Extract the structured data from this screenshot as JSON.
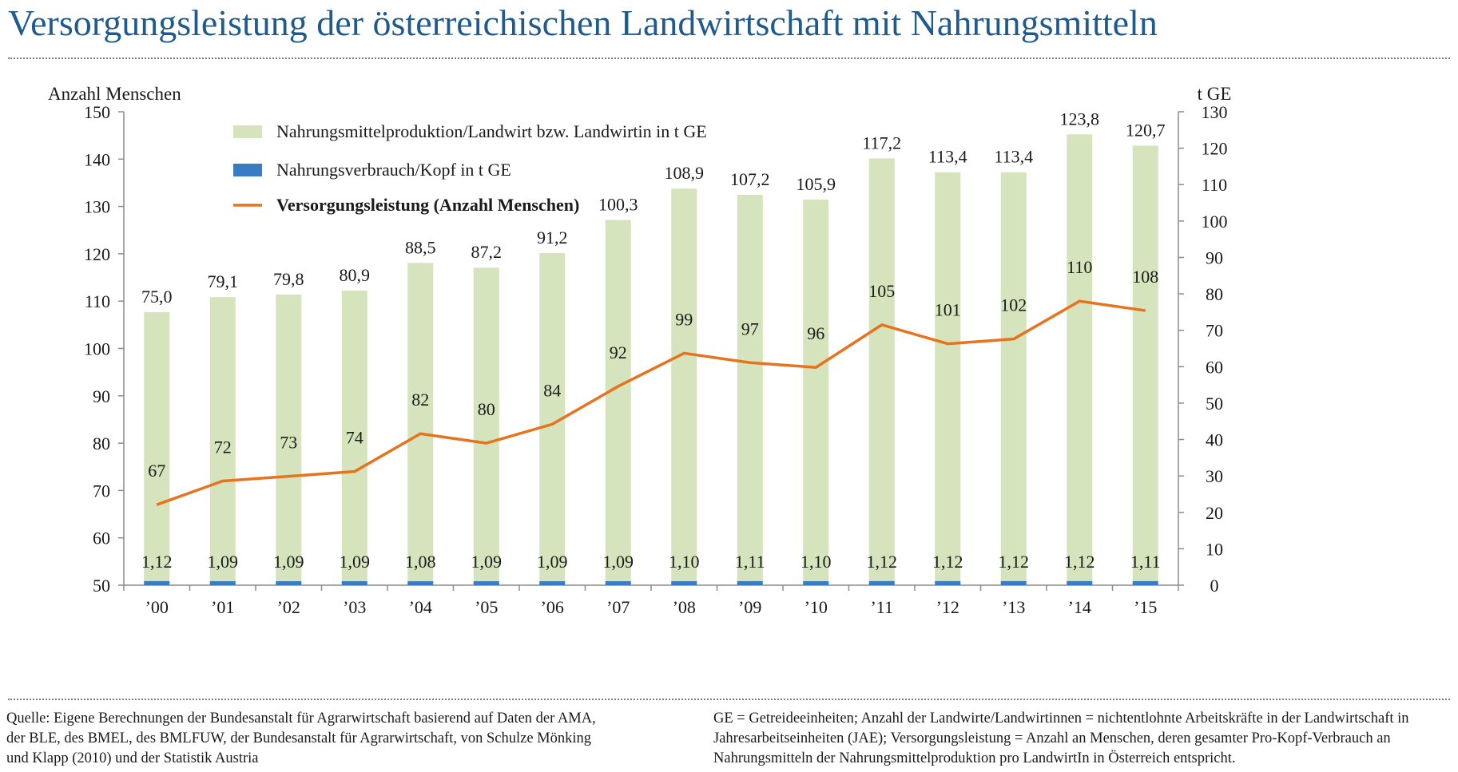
{
  "title": "Versorgungsleistung der österreichischen Landwirtschaft mit Nahrungsmitteln",
  "footer": {
    "source": "Quelle: Eigene Berechnungen der Bundesanstalt für Agrarwirtschaft basierend auf Daten der AMA, der BLE, des BMEL, des BMLFUW, der Bundesanstalt für Agrarwirtschaft, von Schulze Mönking und Klapp (2010) und der Statistik Austria",
    "note": "GE = Getreideeinheiten; Anzahl der Landwirte/Landwirtinnen = nichtentlohnte Arbeitskräfte in der Landwirtschaft in Jahresarbeitseinheiten (JAE); Versorgungsleistung = Anzahl an Menschen, deren gesamter Pro-Kopf-Verbrauch an Nahrungsmitteln der Nahrungsmittelproduktion pro LandwirtIn in Österreich entspricht."
  },
  "colors": {
    "title": "#1f5a8e",
    "production_bar": "#d5e4bc",
    "consumption_bar": "#3a7cc3",
    "line": "#e8731f",
    "axis": "#8c8c8c"
  },
  "chart_data": {
    "type": "bar+line",
    "categories": [
      "’00",
      "’01",
      "’02",
      "’03",
      "’04",
      "’05",
      "’06",
      "’07",
      "’08",
      "’09",
      "’10",
      "’11",
      "’12",
      "’13",
      "’14",
      "’15"
    ],
    "series": [
      {
        "name": "Nahrungsmittelproduktion/Landwirt bzw. Landwirtin in t GE",
        "type": "bar",
        "axis": "right",
        "values": [
          75.0,
          79.1,
          79.8,
          80.9,
          88.5,
          87.2,
          91.2,
          100.3,
          108.9,
          107.2,
          105.9,
          117.2,
          113.4,
          113.4,
          123.8,
          120.7
        ],
        "labels": [
          "75,0",
          "79,1",
          "79,8",
          "80,9",
          "88,5",
          "87,2",
          "91,2",
          "100,3",
          "108,9",
          "107,2",
          "105,9",
          "117,2",
          "113,4",
          "113,4",
          "123,8",
          "120,7"
        ]
      },
      {
        "name": "Nahrungsverbrauch/Kopf in t GE",
        "type": "bar",
        "axis": "right",
        "values": [
          1.12,
          1.09,
          1.09,
          1.09,
          1.08,
          1.09,
          1.09,
          1.09,
          1.1,
          1.11,
          1.1,
          1.12,
          1.12,
          1.12,
          1.12,
          1.11
        ],
        "labels": [
          "1,12",
          "1,09",
          "1,09",
          "1,09",
          "1,08",
          "1,09",
          "1,09",
          "1,09",
          "1,10",
          "1,11",
          "1,10",
          "1,12",
          "1,12",
          "1,12",
          "1,12",
          "1,11"
        ]
      },
      {
        "name": "Versorgungsleistung (Anzahl Menschen)",
        "type": "line",
        "axis": "left",
        "values": [
          67,
          72,
          73,
          74,
          82,
          80,
          84,
          92,
          99,
          97,
          96,
          105,
          101,
          102,
          110,
          108
        ],
        "labels": [
          "67",
          "72",
          "73",
          "74",
          "82",
          "80",
          "84",
          "92",
          "99",
          "97",
          "96",
          "105",
          "101",
          "102",
          "110",
          "108"
        ]
      }
    ],
    "left_axis": {
      "label": "Anzahl Menschen",
      "range": [
        50,
        150
      ],
      "ticks": [
        50,
        60,
        70,
        80,
        90,
        100,
        110,
        120,
        130,
        140,
        150
      ],
      "tick_labels": [
        "50",
        "60",
        "70",
        "80",
        "90",
        "100",
        "110",
        "120",
        "130",
        "140",
        "150"
      ]
    },
    "right_axis": {
      "label": "t GE",
      "range": [
        0,
        130
      ],
      "ticks": [
        0,
        10,
        20,
        30,
        40,
        50,
        60,
        70,
        80,
        90,
        100,
        110,
        120,
        130
      ],
      "tick_labels": [
        "0",
        "10",
        "20",
        "30",
        "40",
        "50",
        "60",
        "70",
        "80",
        "90",
        "100",
        "110",
        "120",
        "130"
      ]
    },
    "legend": [
      "Nahrungsmittelproduktion/Landwirt bzw. Landwirtin in t GE",
      "Nahrungsverbrauch/Kopf in t GE",
      "Versorgungsleistung (Anzahl Menschen)"
    ],
    "legend_position": "top-left",
    "grid": false
  }
}
